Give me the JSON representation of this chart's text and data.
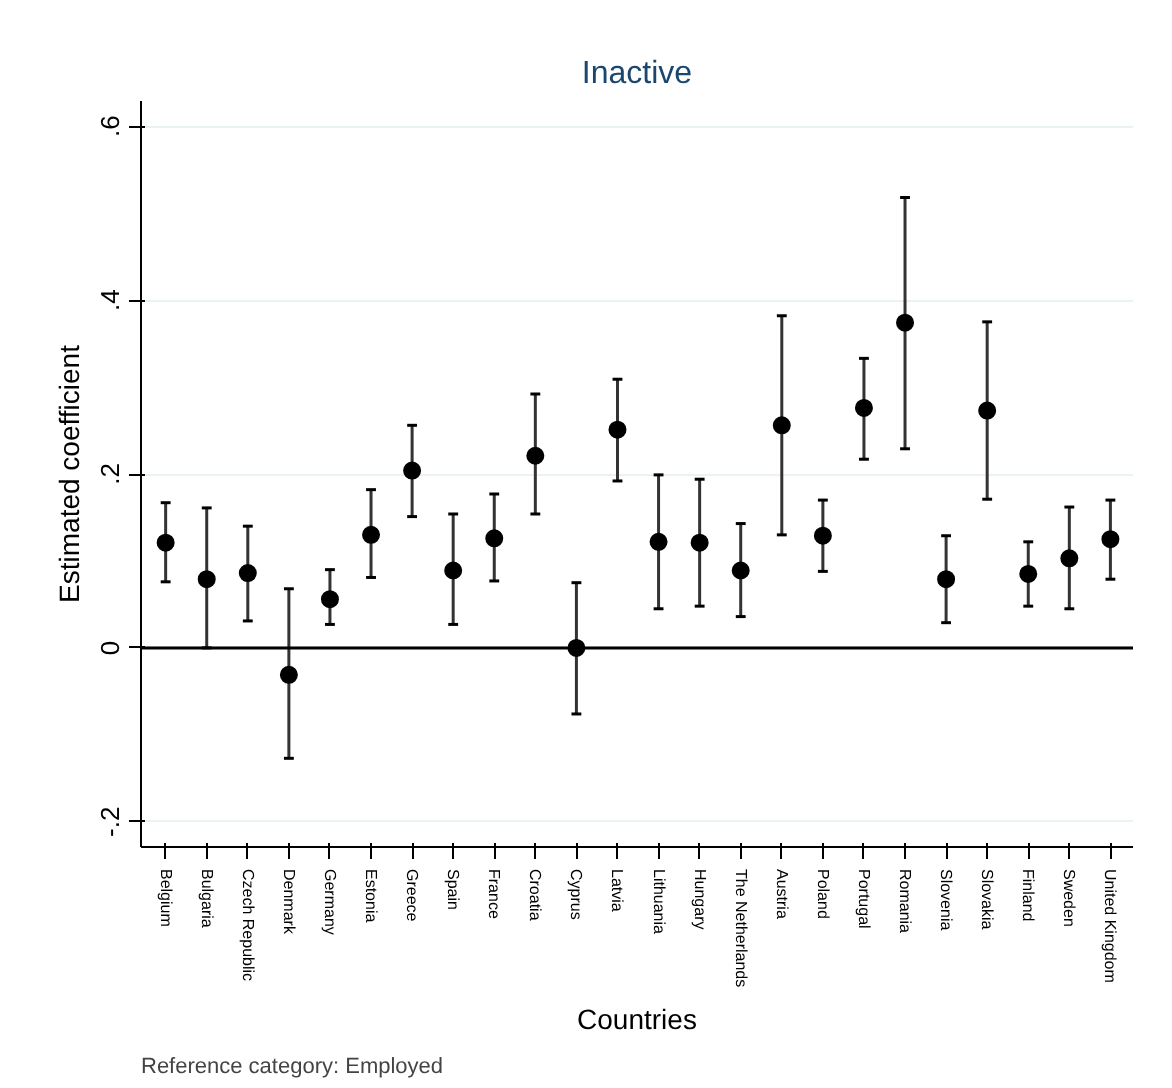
{
  "chart_data": {
    "type": "scatter",
    "title": "Inactive",
    "xlabel": "Countries",
    "ylabel": "Estimated coefficient",
    "annotations": [
      "Reference category: Employed"
    ],
    "categories": [
      "Belgium",
      "Bulgaria",
      "Czech Republic",
      "Denmark",
      "Germany",
      "Estonia",
      "Greece",
      "Spain",
      "France",
      "Croatia",
      "Cyprus",
      "Latvia",
      "Lithuania",
      "Hungary",
      "The Netherlands",
      "Austria",
      "Poland",
      "Portugal",
      "Romania",
      "Slovenia",
      "Slovakia",
      "Finland",
      "Sweden",
      "United Kingdom"
    ],
    "series": [
      {
        "color": "#000000",
        "values": [
          0.121,
          0.079,
          0.086,
          -0.031,
          0.056,
          0.13,
          0.204,
          0.089,
          0.126,
          0.221,
          0.0,
          0.251,
          0.122,
          0.121,
          0.089,
          0.256,
          0.129,
          0.276,
          0.374,
          0.079,
          0.273,
          0.085,
          0.103,
          0.125
        ],
        "errors": [
          [
            0.076,
            0.167
          ],
          [
            0.0,
            0.161
          ],
          [
            0.031,
            0.14
          ],
          [
            -0.127,
            0.068
          ],
          [
            0.027,
            0.09
          ],
          [
            0.081,
            0.182
          ],
          [
            0.151,
            0.256
          ],
          [
            0.027,
            0.154
          ],
          [
            0.077,
            0.177
          ],
          [
            0.154,
            0.292
          ],
          [
            -0.076,
            0.075
          ],
          [
            0.192,
            0.309
          ],
          [
            0.045,
            0.199
          ],
          [
            0.048,
            0.194
          ],
          [
            0.036,
            0.143
          ],
          [
            0.13,
            0.382
          ],
          [
            0.088,
            0.17
          ],
          [
            0.217,
            0.333
          ],
          [
            0.229,
            0.518
          ],
          [
            0.029,
            0.129
          ],
          [
            0.171,
            0.375
          ],
          [
            0.048,
            0.122
          ],
          [
            0.045,
            0.162
          ],
          [
            0.079,
            0.17
          ]
        ]
      }
    ],
    "ylim": [
      -0.229,
      0.629
    ],
    "yticks": [
      {
        "value": -0.2,
        "label": "-.2"
      },
      {
        "value": 0,
        "label": "0"
      },
      {
        "value": 0.2,
        "label": ".2"
      },
      {
        "value": 0.4,
        "label": ".4"
      },
      {
        "value": 0.6,
        "label": ".6"
      }
    ],
    "ref_lines": [
      {
        "axis": "y",
        "value": 0,
        "color": "#000000"
      }
    ],
    "grid": "y",
    "marker": "circle"
  }
}
